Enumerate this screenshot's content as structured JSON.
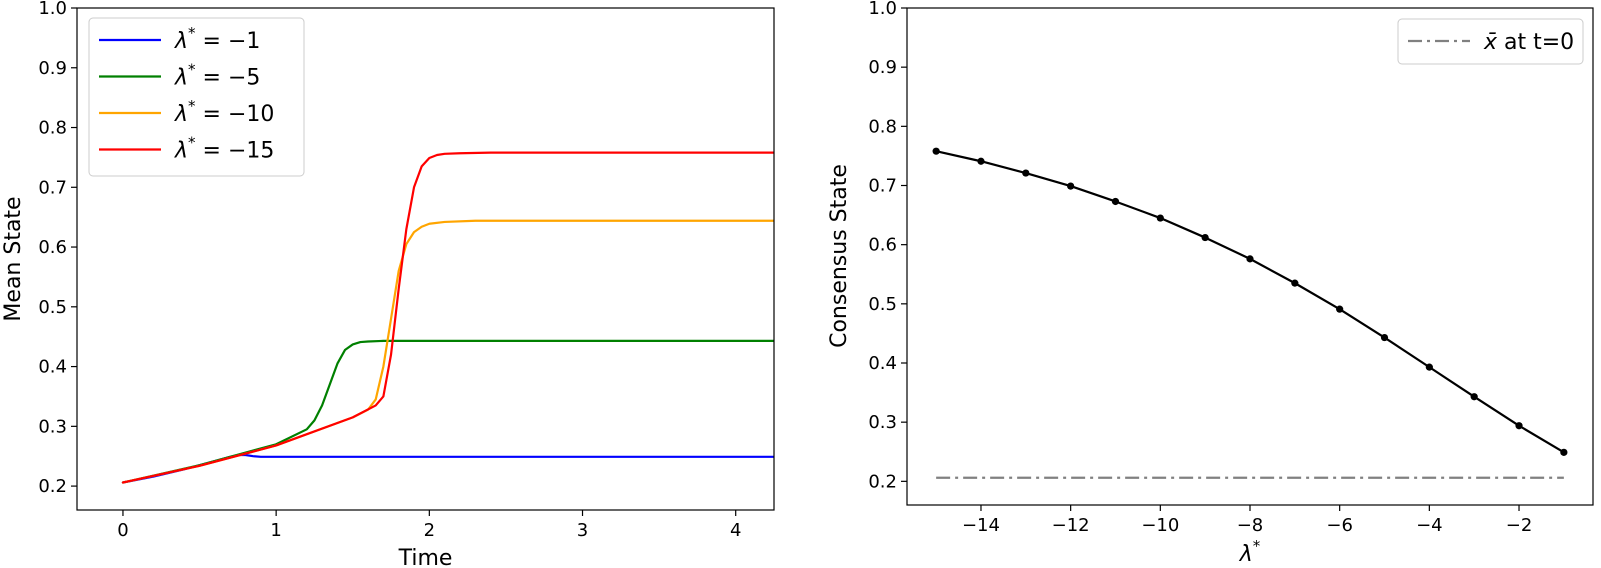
{
  "chart_data": [
    {
      "type": "line",
      "xlabel": "Time",
      "ylabel": "Mean State",
      "xlim": [
        -0.3,
        4.25
      ],
      "ylim": [
        0.16,
        1.0
      ],
      "xticks": [
        0,
        1,
        2,
        3,
        4
      ],
      "xtick_labels": [
        "0",
        "1",
        "2",
        "3",
        "4"
      ],
      "yticks": [
        0.2,
        0.3,
        0.4,
        0.5,
        0.6,
        0.7,
        0.8,
        0.9,
        1.0
      ],
      "ytick_labels": [
        "0.2",
        "0.3",
        "0.4",
        "0.5",
        "0.6",
        "0.7",
        "0.8",
        "0.9",
        "1.0"
      ],
      "grid": false,
      "legend_position": "top-left",
      "series": [
        {
          "name": "λ* = −1",
          "legend_main": "λ",
          "legend_sup": "*",
          "legend_rest": " = −1",
          "color": "#0000ff",
          "x": [
            0,
            0.2,
            0.4,
            0.6,
            0.7,
            0.75,
            0.8,
            0.85,
            0.9,
            1.0,
            1.5,
            2.0,
            3.0,
            4.25
          ],
          "y": [
            0.206,
            0.216,
            0.228,
            0.242,
            0.249,
            0.252,
            0.252,
            0.25,
            0.249,
            0.249,
            0.249,
            0.249,
            0.249,
            0.249
          ]
        },
        {
          "name": "λ* = −5",
          "legend_main": "λ",
          "legend_sup": "*",
          "legend_rest": " = −5",
          "color": "#008000",
          "x": [
            0,
            0.5,
            1.0,
            1.2,
            1.25,
            1.3,
            1.35,
            1.4,
            1.45,
            1.5,
            1.55,
            1.6,
            1.7,
            1.8,
            2.0,
            3.0,
            4.25
          ],
          "y": [
            0.206,
            0.235,
            0.27,
            0.295,
            0.31,
            0.335,
            0.37,
            0.405,
            0.428,
            0.437,
            0.441,
            0.442,
            0.443,
            0.443,
            0.443,
            0.443,
            0.443
          ]
        },
        {
          "name": "λ* = −10",
          "legend_main": "λ",
          "legend_sup": "*",
          "legend_rest": " = −10",
          "color": "#ffa500",
          "x": [
            0,
            0.5,
            1.0,
            1.5,
            1.6,
            1.65,
            1.7,
            1.75,
            1.8,
            1.85,
            1.9,
            1.95,
            2.0,
            2.1,
            2.3,
            2.5,
            3.0,
            4.25
          ],
          "y": [
            0.206,
            0.234,
            0.268,
            0.315,
            0.328,
            0.345,
            0.4,
            0.48,
            0.56,
            0.605,
            0.625,
            0.634,
            0.639,
            0.642,
            0.644,
            0.644,
            0.644,
            0.644
          ]
        },
        {
          "name": "λ* = −15",
          "legend_main": "λ",
          "legend_sup": "*",
          "legend_rest": " = −15",
          "color": "#ff0000",
          "x": [
            0,
            0.5,
            1.0,
            1.5,
            1.65,
            1.7,
            1.75,
            1.8,
            1.85,
            1.9,
            1.95,
            2.0,
            2.05,
            2.1,
            2.2,
            2.4,
            2.6,
            3.0,
            4.25
          ],
          "y": [
            0.206,
            0.234,
            0.268,
            0.315,
            0.335,
            0.35,
            0.42,
            0.53,
            0.63,
            0.7,
            0.735,
            0.749,
            0.754,
            0.756,
            0.757,
            0.758,
            0.758,
            0.758,
            0.758
          ]
        }
      ]
    },
    {
      "type": "line",
      "xlabel_main": "λ",
      "xlabel_sup": "*",
      "ylabel": "Consensus State",
      "xlim": [
        -15.65,
        -0.35
      ],
      "ylim": [
        0.16,
        1.0
      ],
      "xticks": [
        -14,
        -12,
        -10,
        -8,
        -6,
        -4,
        -2
      ],
      "xtick_labels": [
        "−14",
        "−12",
        "−10",
        "−8",
        "−6",
        "−4",
        "−2"
      ],
      "yticks": [
        0.2,
        0.3,
        0.4,
        0.5,
        0.6,
        0.7,
        0.8,
        0.9,
        1.0
      ],
      "ytick_labels": [
        "0.2",
        "0.3",
        "0.4",
        "0.5",
        "0.6",
        "0.7",
        "0.8",
        "0.9",
        "1.0"
      ],
      "grid": false,
      "legend_position": "top-right",
      "series": [
        {
          "color": "#000000",
          "markers": true,
          "x": [
            -15,
            -14,
            -13,
            -12,
            -11,
            -10,
            -9,
            -8,
            -7,
            -6,
            -5,
            -4,
            -3,
            -2,
            -1
          ],
          "y": [
            0.758,
            0.741,
            0.721,
            0.699,
            0.673,
            0.645,
            0.612,
            0.576,
            0.535,
            0.491,
            0.443,
            0.393,
            0.343,
            0.294,
            0.249
          ]
        },
        {
          "name": "x̄ at t=0",
          "legend_main": "x̄",
          "legend_rest": " at t=0",
          "color": "#808080",
          "dashed": "dashdot",
          "x": [
            -15,
            -1
          ],
          "y": [
            0.206,
            0.206
          ]
        }
      ]
    }
  ]
}
